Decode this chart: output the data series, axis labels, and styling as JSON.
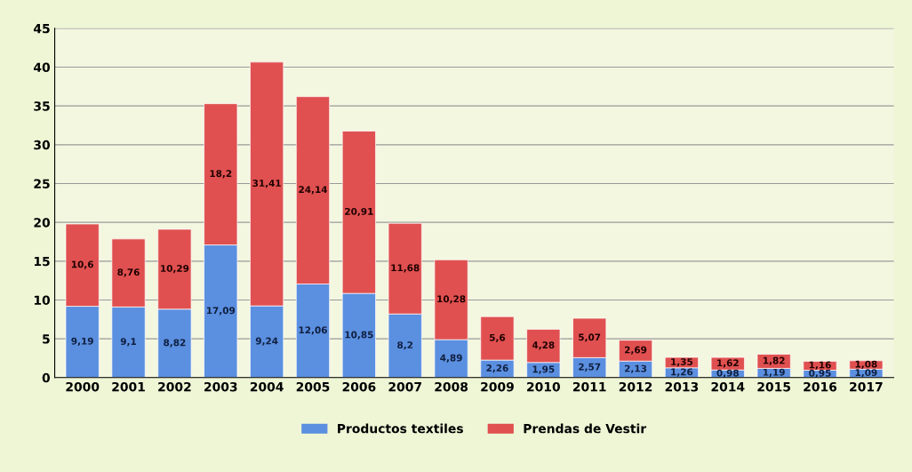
{
  "chart_data": {
    "type": "bar",
    "stacked": true,
    "categories": [
      "2000",
      "2001",
      "2002",
      "2003",
      "2004",
      "2005",
      "2006",
      "2007",
      "2008",
      "2009",
      "2010",
      "2011",
      "2012",
      "2013",
      "2014",
      "2015",
      "2016",
      "2017"
    ],
    "series": [
      {
        "name": "Productos textiles",
        "color": "#5b8fe0",
        "values": [
          9.19,
          9.1,
          8.82,
          17.09,
          9.24,
          12.06,
          10.85,
          8.2,
          4.89,
          2.26,
          1.95,
          2.57,
          2.13,
          1.26,
          0.98,
          1.19,
          0.95,
          1.09
        ],
        "value_labels": [
          "9,19",
          "9,1",
          "8,82",
          "17,09",
          "9,24",
          "12,06",
          "10,85",
          "8,2",
          "4,89",
          "2,26",
          "1,95",
          "2,57",
          "2,13",
          "1,26",
          "0,98",
          "1,19",
          "0,95",
          "1,09"
        ]
      },
      {
        "name": "Prendas de Vestir",
        "color": "#e05050",
        "values": [
          10.6,
          8.76,
          10.29,
          18.2,
          31.41,
          24.14,
          20.91,
          11.68,
          10.28,
          5.6,
          4.28,
          5.07,
          2.69,
          1.35,
          1.62,
          1.82,
          1.16,
          1.08
        ],
        "value_labels": [
          "10,6",
          "8,76",
          "10,29",
          "18,2",
          "31,41",
          "24,14",
          "20,91",
          "11,68",
          "10,28",
          "5,6",
          "4,28",
          "5,07",
          "2,69",
          "1,35",
          "1,62",
          "1,82",
          "1,16",
          "1,08"
        ]
      }
    ],
    "ylim": [
      0,
      45
    ],
    "yticks": [
      0,
      5,
      10,
      15,
      20,
      25,
      30,
      35,
      40,
      45
    ],
    "grid": "y",
    "legend": "bottom"
  }
}
